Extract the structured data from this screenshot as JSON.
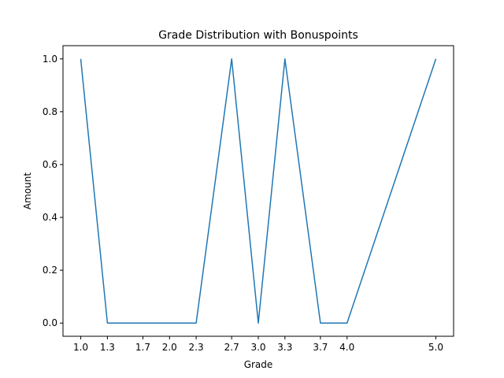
{
  "chart_data": {
    "type": "line",
    "title": "Grade Distribution with Bonuspoints",
    "xlabel": "Grade",
    "ylabel": "Amount",
    "x": [
      1.0,
      1.3,
      1.7,
      2.0,
      2.3,
      2.7,
      3.0,
      3.3,
      3.7,
      4.0,
      5.0
    ],
    "series": [
      {
        "values": [
          1,
          0,
          0,
          0,
          0,
          1,
          0,
          1,
          0,
          0,
          1
        ],
        "color": "#1f77b4"
      }
    ],
    "xticks": [
      "1.0",
      "1.3",
      "1.7",
      "2.0",
      "2.3",
      "2.7",
      "3.0",
      "3.3",
      "3.7",
      "4.0",
      "5.0"
    ],
    "yticks": [
      "0.0",
      "0.2",
      "0.4",
      "0.6",
      "0.8",
      "1.0"
    ],
    "xlim": [
      0.8,
      5.2
    ],
    "ylim": [
      -0.05,
      1.05
    ],
    "grid": false,
    "legend": false
  }
}
